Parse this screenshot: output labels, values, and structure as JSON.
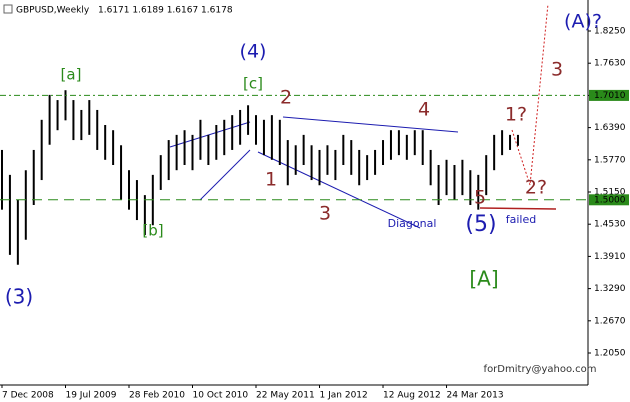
{
  "chart_data": {
    "type": "hilo",
    "title": "GBPUSD,Weekly",
    "subtitle": "1.6171 1.6189 1.6167 1.6178",
    "color": "#000000",
    "x": [
      "2008-12-07",
      "2009-01-04",
      "2009-02-01",
      "2009-03-01",
      "2009-03-29",
      "2009-04-26",
      "2009-05-24",
      "2009-06-21",
      "2009-07-19",
      "2009-08-16",
      "2009-09-13",
      "2009-10-11",
      "2009-11-08",
      "2009-12-06",
      "2010-01-03",
      "2010-01-31",
      "2010-02-28",
      "2010-03-28",
      "2010-04-25",
      "2010-05-23",
      "2010-06-20",
      "2010-07-18",
      "2010-08-15",
      "2010-09-12",
      "2010-10-10",
      "2010-11-07",
      "2010-12-05",
      "2011-01-02",
      "2011-01-30",
      "2011-02-27",
      "2011-03-27",
      "2011-04-24",
      "2011-05-22",
      "2011-06-19",
      "2011-07-17",
      "2011-08-14",
      "2011-09-11",
      "2011-10-09",
      "2011-11-06",
      "2011-12-04",
      "2012-01-01",
      "2012-01-29",
      "2012-02-26",
      "2012-03-25",
      "2012-04-22",
      "2012-05-20",
      "2012-06-17",
      "2012-07-15",
      "2012-08-12",
      "2012-09-09",
      "2012-10-07",
      "2012-11-04",
      "2012-12-02",
      "2012-12-30",
      "2013-01-27",
      "2013-02-24",
      "2013-03-24",
      "2013-04-21",
      "2013-05-19",
      "2013-06-16",
      "2013-07-14",
      "2013-08-11",
      "2013-09-08",
      "2013-10-06",
      "2013-11-03",
      "2013-12-01"
    ],
    "high": [
      1.596,
      1.548,
      1.5,
      1.557,
      1.596,
      1.654,
      1.702,
      1.692,
      1.711,
      1.692,
      1.673,
      1.692,
      1.673,
      1.644,
      1.634,
      1.605,
      1.557,
      1.538,
      1.509,
      1.548,
      1.586,
      1.615,
      1.625,
      1.634,
      1.625,
      1.654,
      1.625,
      1.644,
      1.654,
      1.663,
      1.673,
      1.682,
      1.663,
      1.654,
      1.663,
      1.654,
      1.615,
      1.605,
      1.625,
      1.605,
      1.596,
      1.605,
      1.596,
      1.625,
      1.615,
      1.596,
      1.586,
      1.596,
      1.615,
      1.634,
      1.634,
      1.625,
      1.634,
      1.634,
      1.596,
      1.567,
      1.577,
      1.567,
      1.577,
      1.557,
      1.548,
      1.586,
      1.625,
      1.634,
      1.625,
      1.625
    ],
    "low": [
      1.481,
      1.394,
      1.375,
      1.423,
      1.49,
      1.538,
      1.606,
      1.634,
      1.653,
      1.615,
      1.615,
      1.625,
      1.596,
      1.577,
      1.567,
      1.5,
      1.481,
      1.461,
      1.432,
      1.451,
      1.519,
      1.538,
      1.557,
      1.567,
      1.557,
      1.577,
      1.567,
      1.577,
      1.586,
      1.596,
      1.606,
      1.625,
      1.606,
      1.586,
      1.577,
      1.567,
      1.528,
      1.548,
      1.567,
      1.538,
      1.528,
      1.548,
      1.538,
      1.567,
      1.548,
      1.528,
      1.538,
      1.548,
      1.567,
      1.577,
      1.586,
      1.577,
      1.586,
      1.567,
      1.528,
      1.49,
      1.509,
      1.5,
      1.509,
      1.49,
      1.481,
      1.509,
      1.557,
      1.586,
      1.596,
      1.604
    ],
    "xlim": [
      "2008-11-30",
      "2014-08-05"
    ],
    "xticks": [
      {
        "value": "2008-12-07",
        "label": "7 Dec 2008"
      },
      {
        "value": "2009-07-19",
        "label": "19 Jul 2009"
      },
      {
        "value": "2010-02-28",
        "label": "28 Feb 2010"
      },
      {
        "value": "2010-10-10",
        "label": "10 Oct 2010"
      },
      {
        "value": "2011-05-22",
        "label": "22 May 2011"
      },
      {
        "value": "2012-01-01",
        "label": "1 Jan 2012"
      },
      {
        "value": "2012-08-12",
        "label": "12 Aug 2012"
      },
      {
        "value": "2013-03-24",
        "label": "24 Mar 2013"
      }
    ],
    "ylim": [
      1.1434,
      1.8847
    ],
    "yticks": [
      {
        "value": 1.825,
        "label": "1.8250"
      },
      {
        "value": 1.763,
        "label": "1.7630"
      },
      {
        "value": 1.701,
        "label": "1.7010"
      },
      {
        "value": 1.639,
        "label": "1.6390"
      },
      {
        "value": 1.577,
        "label": "1.5770"
      },
      {
        "value": 1.515,
        "label": "1.5150"
      },
      {
        "value": 1.453,
        "label": "1.4530"
      },
      {
        "value": 1.391,
        "label": "1.3910"
      },
      {
        "value": 1.329,
        "label": "1.3290"
      },
      {
        "value": 1.267,
        "label": "1.2670"
      },
      {
        "value": 1.205,
        "label": "1.2050"
      }
    ],
    "hlines": [
      {
        "value": 1.701,
        "label": "1.7010",
        "color": "#2a8a1a"
      },
      {
        "value": 1.5,
        "label": "1.5000",
        "color": "#2a8a1a"
      }
    ],
    "annotations": [
      {
        "text": "(A)?",
        "color": "#1c1cb0"
      },
      {
        "text": "(4)",
        "color": "#1c1cb0"
      },
      {
        "text": "[a]",
        "color": "#2a8a1a"
      },
      {
        "text": "[c]",
        "color": "#2a8a1a"
      },
      {
        "text": "2",
        "color": "#8b2b2b"
      },
      {
        "text": "4",
        "color": "#8b2b2b"
      },
      {
        "text": "1?",
        "color": "#8b2b2b"
      },
      {
        "text": "3",
        "color": "#8b2b2b"
      },
      {
        "text": "1",
        "color": "#8b2b2b"
      },
      {
        "text": "3",
        "color": "#8b2b2b"
      },
      {
        "text": "2?",
        "color": "#8b2b2b"
      },
      {
        "text": "5",
        "color": "#8b2b2b"
      },
      {
        "text": "Diagonal",
        "color": "#1c1cb0"
      },
      {
        "text": "(5)",
        "color": "#1c1cb0"
      },
      {
        "text": "failed",
        "color": "#1c1cb0"
      },
      {
        "text": "[b]",
        "color": "#2a8a1a"
      },
      {
        "text": "[A]",
        "color": "#2a8a1a"
      },
      {
        "text": "(3)",
        "color": "#1c1cb0"
      },
      {
        "text": "forDmitry@yahoo.com",
        "color": "#333333"
      }
    ]
  }
}
